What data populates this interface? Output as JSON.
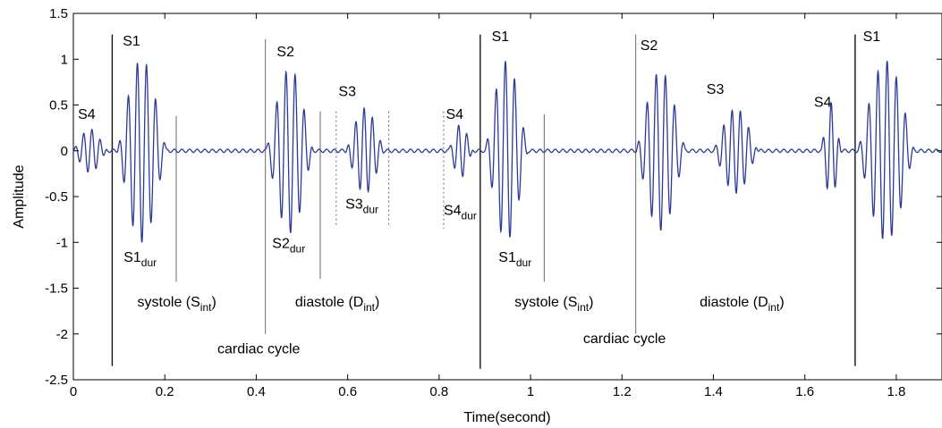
{
  "chart_data": {
    "type": "line",
    "title": "",
    "xlabel": "Time(second)",
    "ylabel": "Amplitude",
    "xlim": [
      0,
      1.9
    ],
    "ylim": [
      -2.5,
      1.5
    ],
    "grid": false,
    "line_color": "#2b3a9a",
    "x_ticks": [
      0,
      0.2,
      0.4,
      0.6,
      0.8,
      1,
      1.2,
      1.4,
      1.6,
      1.8
    ],
    "x_tick_labels": [
      "0",
      "0.2",
      "0.4",
      "0.6",
      "0.8",
      "1",
      "1.2",
      "1.4",
      "1.6",
      "1.8"
    ],
    "y_ticks": [
      1.5,
      1,
      0.5,
      0,
      -0.5,
      -1,
      -1.5,
      -2,
      -2.5
    ],
    "y_tick_labels": [
      "1.5",
      "1",
      "0.5",
      "0",
      "-0.5",
      "-1",
      "-1.5",
      "-2",
      "-2.5"
    ],
    "series": [
      {
        "bursts": [
          {
            "t0": 0.0,
            "t1": 0.075,
            "amp": 0.23,
            "freq": 55
          },
          {
            "t0": 0.095,
            "t1": 0.205,
            "amp": 1.0,
            "freq": 50
          },
          {
            "t0": 0.42,
            "t1": 0.525,
            "amp": 0.9,
            "freq": 50
          },
          {
            "t0": 0.595,
            "t1": 0.68,
            "amp": 0.45,
            "freq": 55
          },
          {
            "t0": 0.82,
            "t1": 0.875,
            "amp": 0.3,
            "freq": 55
          },
          {
            "t0": 0.9,
            "t1": 0.995,
            "amp": 1.0,
            "freq": 50
          },
          {
            "t0": 1.23,
            "t1": 1.34,
            "amp": 0.88,
            "freq": 50
          },
          {
            "t0": 1.4,
            "t1": 1.5,
            "amp": 0.46,
            "freq": 55
          },
          {
            "t0": 1.635,
            "t1": 1.68,
            "amp": 0.52,
            "freq": 55
          },
          {
            "t0": 1.715,
            "t1": 1.84,
            "amp": 1.0,
            "freq": 50
          }
        ]
      }
    ],
    "markers": [
      {
        "x": 0.085,
        "y0": 1.27,
        "y1": -2.35,
        "style": "solid-dark"
      },
      {
        "x": 0.225,
        "y0": 0.38,
        "y1": -1.43,
        "style": "solid-light"
      },
      {
        "x": 0.42,
        "y0": 1.22,
        "y1": -2.0,
        "style": "solid-light"
      },
      {
        "x": 0.54,
        "y0": 0.43,
        "y1": -1.4,
        "style": "solid-light"
      },
      {
        "x": 0.575,
        "y0": 0.43,
        "y1": -0.82,
        "style": "dotted"
      },
      {
        "x": 0.69,
        "y0": 0.43,
        "y1": -0.82,
        "style": "dotted"
      },
      {
        "x": 0.81,
        "y0": 0.43,
        "y1": -0.85,
        "style": "dotted"
      },
      {
        "x": 0.89,
        "y0": 1.27,
        "y1": -2.38,
        "style": "solid-dark"
      },
      {
        "x": 1.03,
        "y0": 0.4,
        "y1": -1.43,
        "style": "solid-light"
      },
      {
        "x": 1.23,
        "y0": 1.27,
        "y1": -2.0,
        "style": "solid-light"
      },
      {
        "x": 1.71,
        "y0": 1.27,
        "y1": -2.35,
        "style": "solid-dark"
      }
    ],
    "annotations": [
      {
        "id": "s4-a",
        "text": "S4",
        "x": 0.01,
        "y": 0.35
      },
      {
        "id": "s1-a",
        "text": "S1",
        "x": 0.108,
        "y": 1.15
      },
      {
        "id": "s2-a",
        "text": "S2",
        "x": 0.445,
        "y": 1.03
      },
      {
        "id": "s3-a",
        "text": "S3",
        "x": 0.58,
        "y": 0.6
      },
      {
        "id": "s4-b",
        "text": "S4",
        "x": 0.815,
        "y": 0.35
      },
      {
        "id": "s1-b",
        "text": "S1",
        "x": 0.915,
        "y": 1.2
      },
      {
        "id": "s2-b",
        "text": "S2",
        "x": 1.24,
        "y": 1.1
      },
      {
        "id": "s3-b",
        "text": "S3",
        "x": 1.385,
        "y": 0.62
      },
      {
        "id": "s4-c",
        "text": "S4",
        "x": 1.62,
        "y": 0.48
      },
      {
        "id": "s1-c",
        "text": "S1",
        "x": 1.727,
        "y": 1.2
      },
      {
        "id": "cc-a",
        "text": "cardiac cycle",
        "x": 0.315,
        "y": -2.21
      },
      {
        "id": "cc-b",
        "text": "cardiac cycle",
        "x": 1.115,
        "y": -2.1
      }
    ],
    "sub_annotations": [
      {
        "id": "s1dur-a",
        "base": "S1",
        "sub": "dur",
        "x": 0.11,
        "y": -1.21
      },
      {
        "id": "s2dur-a",
        "base": "S2",
        "sub": "dur",
        "x": 0.435,
        "y": -1.06
      },
      {
        "id": "s3dur-a",
        "base": "S3",
        "sub": "dur",
        "x": 0.595,
        "y": -0.63
      },
      {
        "id": "s4dur-a",
        "base": "S4",
        "sub": "dur",
        "x": 0.81,
        "y": -0.7
      },
      {
        "id": "s1dur-b",
        "base": "S1",
        "sub": "dur",
        "x": 0.93,
        "y": -1.21
      },
      {
        "id": "sys-a",
        "base": "systole (S",
        "sub": "int",
        "tail": ")",
        "x": 0.14,
        "y": -1.7
      },
      {
        "id": "dia-a",
        "base": "diastole (D",
        "sub": "int",
        "tail": ")",
        "x": 0.485,
        "y": -1.7
      },
      {
        "id": "sys-b",
        "base": "systole (S",
        "sub": "int",
        "tail": ")",
        "x": 0.965,
        "y": -1.7
      },
      {
        "id": "dia-b",
        "base": "diastole (D",
        "sub": "int",
        "tail": ")",
        "x": 1.37,
        "y": -1.7
      }
    ]
  }
}
